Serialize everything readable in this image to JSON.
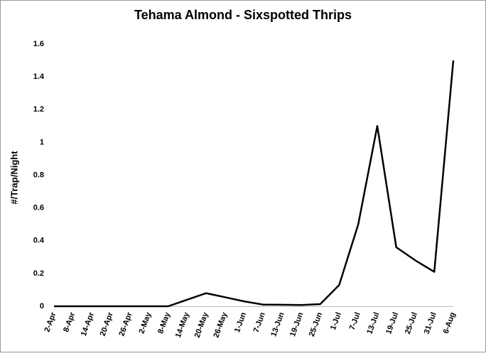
{
  "chart_data": {
    "type": "line",
    "title": "Tehama Almond - Sixspotted Thrips",
    "y_label": "#/Trap/Night",
    "categories": [
      "2-Apr",
      "8-Apr",
      "14-Apr",
      "20-Apr",
      "26-Apr",
      "2-May",
      "8-May",
      "14-May",
      "20-May",
      "26-May",
      "1-Jun",
      "7-Jun",
      "13-Jun",
      "19-Jun",
      "25-Jun",
      "1-Jul",
      "7-Jul",
      "13-Jul",
      "19-Jul",
      "25-Jul",
      "31-Jul",
      "6-Aug"
    ],
    "series": [
      {
        "name": "Sixspotted Thrips",
        "color": "#000000",
        "values": [
          0,
          0,
          0,
          0,
          0,
          0,
          0,
          0.04,
          0.08,
          0.055,
          0.03,
          0.01,
          0.009,
          0.008,
          0.013,
          0.13,
          0.5,
          1.1,
          0.36,
          0.28,
          0.21,
          1.5
        ]
      }
    ],
    "ylim": [
      0,
      1.6
    ],
    "yticks": [
      0,
      0.2,
      0.4,
      0.6,
      0.8,
      1,
      1.2,
      1.4,
      1.6
    ],
    "grid": false
  }
}
